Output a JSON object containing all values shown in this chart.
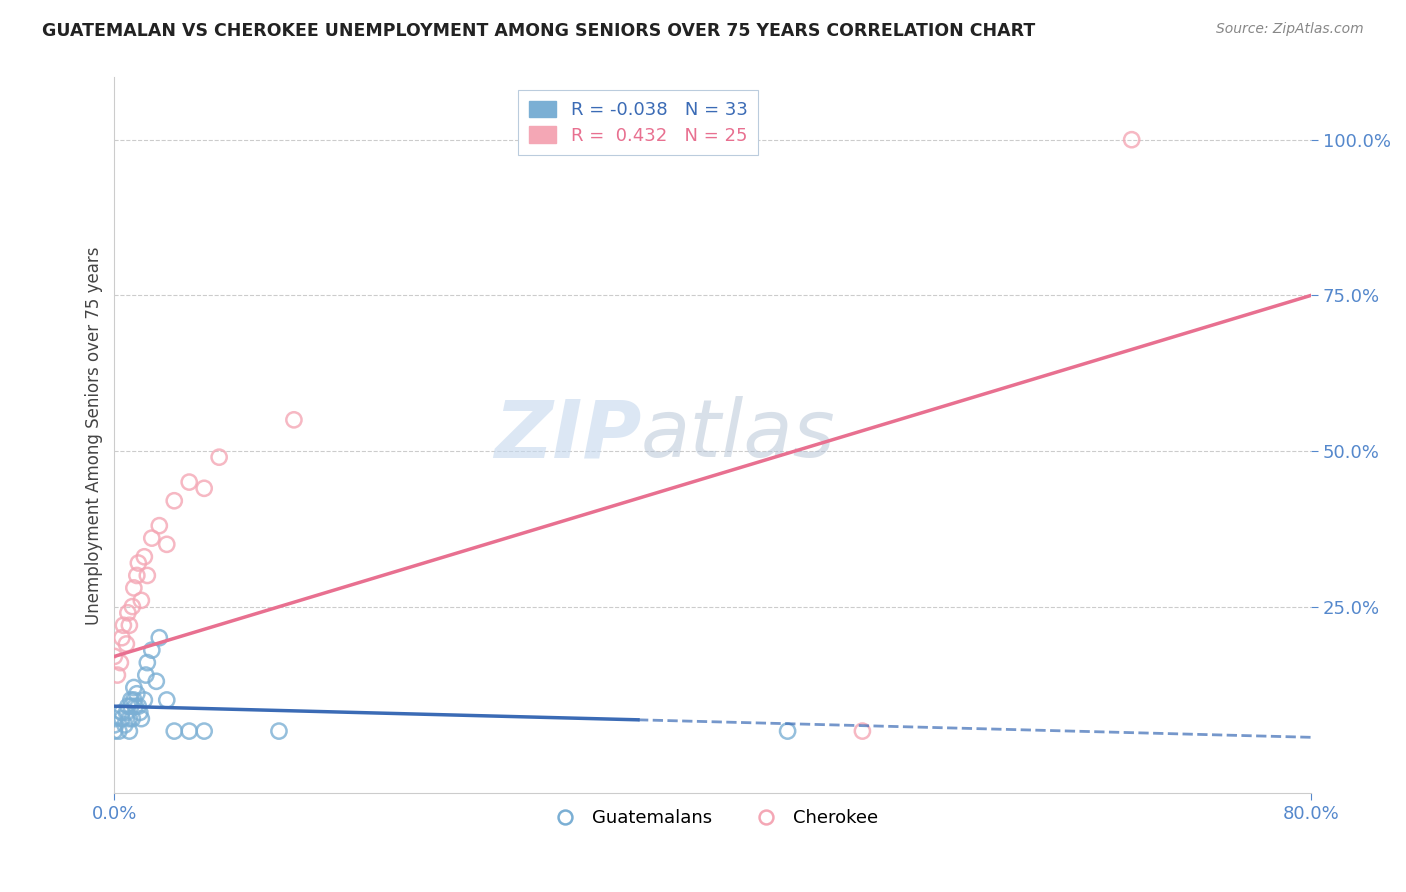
{
  "title": "GUATEMALAN VS CHEROKEE UNEMPLOYMENT AMONG SENIORS OVER 75 YEARS CORRELATION CHART",
  "source": "Source: ZipAtlas.com",
  "ylabel": "Unemployment Among Seniors over 75 years",
  "xlim": [
    0.0,
    0.8
  ],
  "ylim": [
    -0.05,
    1.1
  ],
  "xtick_labels": [
    "0.0%",
    "80.0%"
  ],
  "xtick_positions": [
    0.0,
    0.8
  ],
  "ytick_labels": [
    "25.0%",
    "50.0%",
    "75.0%",
    "100.0%"
  ],
  "ytick_positions": [
    0.25,
    0.5,
    0.75,
    1.0
  ],
  "guatemalan_color": "#7BAFD4",
  "cherokee_color": "#F4A7B5",
  "guatemalan_line_color": "#3B6BB5",
  "cherokee_line_color": "#E87090",
  "watermark_zip": "ZIP",
  "watermark_atlas": "atlas",
  "legend_R_guatemalan": "-0.038",
  "legend_N_guatemalan": "33",
  "legend_R_cherokee": "0.432",
  "legend_N_cherokee": "25",
  "guatemalan_x": [
    0.0,
    0.0,
    0.0,
    0.003,
    0.005,
    0.005,
    0.007,
    0.008,
    0.009,
    0.01,
    0.01,
    0.011,
    0.011,
    0.012,
    0.013,
    0.013,
    0.014,
    0.015,
    0.016,
    0.017,
    0.018,
    0.02,
    0.021,
    0.022,
    0.025,
    0.028,
    0.03,
    0.035,
    0.04,
    0.05,
    0.06,
    0.11,
    0.45
  ],
  "guatemalan_y": [
    0.05,
    0.06,
    0.07,
    0.05,
    0.07,
    0.08,
    0.06,
    0.08,
    0.09,
    0.05,
    0.07,
    0.09,
    0.1,
    0.07,
    0.1,
    0.12,
    0.09,
    0.11,
    0.09,
    0.08,
    0.07,
    0.1,
    0.14,
    0.16,
    0.18,
    0.13,
    0.2,
    0.1,
    0.05,
    0.05,
    0.05,
    0.05,
    0.05
  ],
  "cherokee_x": [
    0.0,
    0.002,
    0.004,
    0.005,
    0.006,
    0.008,
    0.009,
    0.01,
    0.012,
    0.013,
    0.015,
    0.016,
    0.018,
    0.02,
    0.022,
    0.025,
    0.03,
    0.035,
    0.04,
    0.05,
    0.06,
    0.07,
    0.12,
    0.5,
    0.68
  ],
  "cherokee_y": [
    0.17,
    0.14,
    0.16,
    0.2,
    0.22,
    0.19,
    0.24,
    0.22,
    0.25,
    0.28,
    0.3,
    0.32,
    0.26,
    0.33,
    0.3,
    0.36,
    0.38,
    0.35,
    0.42,
    0.45,
    0.44,
    0.49,
    0.55,
    0.05,
    1.0
  ],
  "cherokee_line_start_x": 0.0,
  "cherokee_line_start_y": 0.17,
  "cherokee_line_end_x": 0.8,
  "cherokee_line_end_y": 0.75,
  "guatemalan_line_start_x": 0.0,
  "guatemalan_line_start_y": 0.09,
  "guatemalan_line_solid_end_x": 0.35,
  "guatemalan_line_end_x": 0.8,
  "guatemalan_line_end_y": 0.04
}
